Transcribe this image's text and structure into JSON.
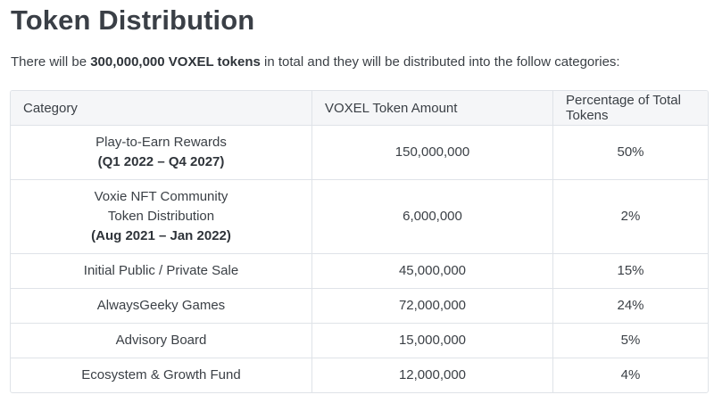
{
  "title": "Token Distribution",
  "intro": {
    "prefix": "There will be ",
    "bold": "300,000,000 VOXEL tokens",
    "suffix": " in total and they will be distributed into the follow categories:"
  },
  "table": {
    "headers": [
      "Category",
      "VOXEL Token Amount",
      "Percentage of Total Tokens"
    ],
    "rows": [
      {
        "category_lines": [
          "Play-to-Earn Rewards"
        ],
        "category_sub": "(Q1 2022 – Q4 2027)",
        "amount": "150,000,000",
        "percent": "50%"
      },
      {
        "category_lines": [
          "Voxie NFT Community",
          "Token Distribution"
        ],
        "category_sub": "(Aug 2021 – Jan 2022)",
        "amount": "6,000,000",
        "percent": "2%"
      },
      {
        "category_lines": [
          "Initial Public / Private Sale"
        ],
        "category_sub": "",
        "amount": "45,000,000",
        "percent": "15%"
      },
      {
        "category_lines": [
          "AlwaysGeeky Games"
        ],
        "category_sub": "",
        "amount": "72,000,000",
        "percent": "24%"
      },
      {
        "category_lines": [
          "Advisory Board"
        ],
        "category_sub": "",
        "amount": "15,000,000",
        "percent": "5%"
      },
      {
        "category_lines": [
          "Ecosystem & Growth Fund"
        ],
        "category_sub": "",
        "amount": "12,000,000",
        "percent": "4%"
      }
    ]
  }
}
